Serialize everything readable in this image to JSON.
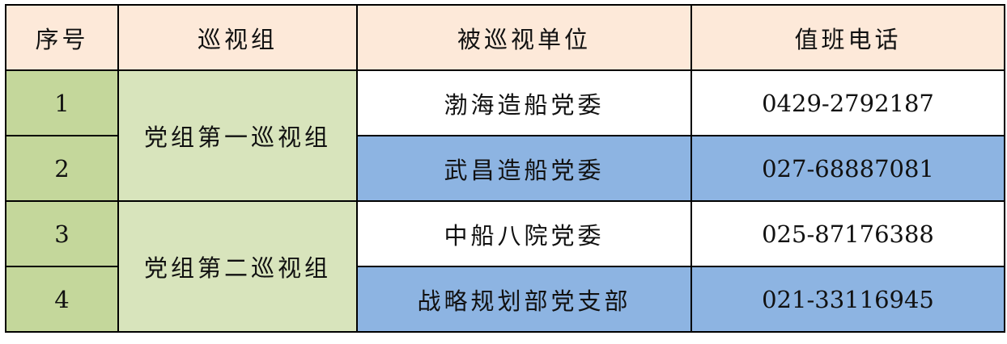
{
  "headers": [
    "序号",
    "巡视组",
    "被巡视单位",
    "值班电话"
  ],
  "groups": [
    "党组第一巡视组",
    "党组第二巡视组"
  ],
  "rows": [
    {
      "no": "1",
      "unit": "渤海造船党委",
      "phone": "0429-2792187"
    },
    {
      "no": "2",
      "unit": "武昌造船党委",
      "phone": "027-68887081"
    },
    {
      "no": "3",
      "unit": "中船八院党委",
      "phone": "025-87176388"
    },
    {
      "no": "4",
      "unit": "战略规划部党支部",
      "phone": "021-33116945"
    }
  ],
  "colors": {
    "header": "#FDE9D9",
    "index": "#C4D79B",
    "group": "#D8E4BC",
    "highlight": "#8DB4E2"
  }
}
